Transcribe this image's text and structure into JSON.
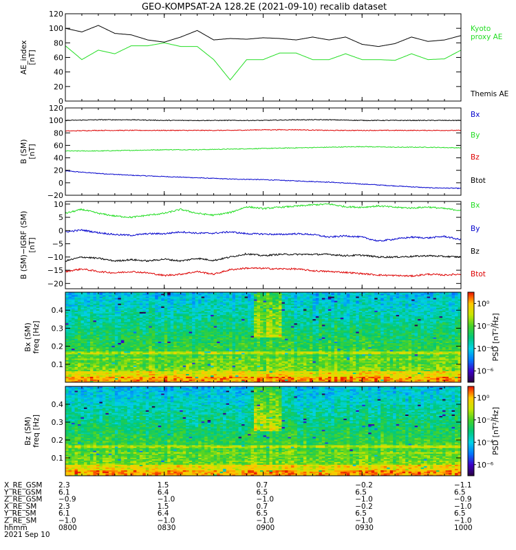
{
  "title": "GEO-KOMPSAT-2A 128.2E (2021-09-10) recalib dataset",
  "colors": {
    "black": "#000000",
    "green": "#22dd22",
    "red": "#dd0000",
    "blue": "#0000cc"
  },
  "time_ticks": [
    "0800",
    "0830",
    "0900",
    "0930",
    "1000"
  ],
  "chart_data": [
    {
      "type": "line",
      "panel": "ae_index",
      "ylabel_lines": [
        "AE_index",
        "[nT]"
      ],
      "ylim": [
        0,
        120
      ],
      "yticks": [
        0,
        20,
        40,
        60,
        80,
        100,
        120
      ],
      "x": [
        0,
        5,
        10,
        15,
        20,
        25,
        30,
        35,
        40,
        45,
        50,
        55,
        60,
        65,
        70,
        75,
        80,
        85,
        90,
        95,
        100,
        105,
        110,
        115,
        120
      ],
      "series": [
        {
          "name": "Kyoto\nproxy AE",
          "label_lines": [
            "Kyoto",
            "proxy AE"
          ],
          "color_key": "green",
          "values": [
            76,
            57,
            70,
            65,
            76,
            76,
            80,
            75,
            75,
            57,
            29,
            57,
            57,
            66,
            66,
            57,
            57,
            65,
            57,
            57,
            56,
            65,
            57,
            58,
            70
          ]
        },
        {
          "name": "Themis AE",
          "label_lines": [
            "Themis AE"
          ],
          "color_key": "black",
          "values": [
            100,
            95,
            104,
            93,
            91,
            84,
            81,
            88,
            97,
            84,
            86,
            85,
            87,
            86,
            84,
            88,
            84,
            88,
            78,
            75,
            79,
            88,
            82,
            84,
            90
          ]
        }
      ]
    },
    {
      "type": "line",
      "panel": "b_sm",
      "ylabel_lines": [
        "B (SM)",
        "[nT]"
      ],
      "ylim": [
        -20,
        120
      ],
      "yticks": [
        -20,
        0,
        20,
        40,
        60,
        80,
        100,
        120
      ],
      "x": [
        0,
        10,
        20,
        30,
        40,
        50,
        60,
        70,
        80,
        90,
        100,
        110,
        120
      ],
      "series": [
        {
          "name": "Bx",
          "label_lines": [
            "Bx"
          ],
          "color_key": "blue",
          "values": [
            19,
            15,
            12,
            10,
            8,
            6,
            5,
            3,
            1,
            -2,
            -5,
            -8,
            -9
          ]
        },
        {
          "name": "By",
          "label_lines": [
            "By"
          ],
          "color_key": "green",
          "values": [
            51,
            51,
            52,
            53,
            53,
            54,
            55,
            56,
            57,
            58,
            57,
            57,
            56
          ]
        },
        {
          "name": "Bz",
          "label_lines": [
            "Bz"
          ],
          "color_key": "red",
          "values": [
            83,
            84,
            84,
            84,
            84,
            84,
            85,
            85,
            84,
            84,
            84,
            84,
            84
          ]
        },
        {
          "name": "Btot",
          "label_lines": [
            "Btot"
          ],
          "color_key": "black",
          "values": [
            100,
            101,
            101,
            100,
            100,
            100,
            100,
            101,
            101,
            100,
            100,
            100,
            100
          ]
        }
      ]
    },
    {
      "type": "line",
      "panel": "b_sm_minus_igrf",
      "ylabel_lines": [
        "B (SM)−IGRF (SM)",
        "[nT]"
      ],
      "ylim": [
        -22,
        11
      ],
      "yticks": [
        -20,
        -15,
        -10,
        -5,
        0,
        5,
        10
      ],
      "x": [
        0,
        5,
        10,
        15,
        20,
        25,
        30,
        35,
        40,
        45,
        50,
        55,
        60,
        65,
        70,
        75,
        80,
        85,
        90,
        95,
        100,
        105,
        110,
        115,
        120
      ],
      "series": [
        {
          "name": "Bx",
          "label_lines": [
            "Bx"
          ],
          "color_key": "green",
          "values": [
            6.5,
            8.0,
            6.5,
            5.5,
            5.0,
            5.8,
            6.5,
            8.0,
            6.5,
            5.8,
            6.8,
            9.0,
            8.3,
            8.8,
            9.2,
            9.7,
            10.0,
            9.0,
            8.8,
            9.3,
            8.8,
            8.5,
            8.9,
            8.3,
            7.6
          ]
        },
        {
          "name": "By",
          "label_lines": [
            "By"
          ],
          "color_key": "blue",
          "values": [
            -0.5,
            0.2,
            -0.8,
            -1.5,
            -1.8,
            -1.2,
            -1.2,
            -0.5,
            -1.0,
            -1.0,
            -0.5,
            -1.2,
            -1.3,
            -1.5,
            -1.2,
            -1.5,
            -2.5,
            -2.0,
            -2.5,
            -4.0,
            -3.2,
            -2.5,
            -2.8,
            -2.2,
            -3.5
          ]
        },
        {
          "name": "Bz",
          "label_lines": [
            "Bz"
          ],
          "color_key": "black",
          "values": [
            -11.5,
            -10.0,
            -10.5,
            -11.5,
            -11.0,
            -11.5,
            -10.8,
            -11.5,
            -10.5,
            -11.3,
            -10.0,
            -8.8,
            -9.5,
            -9.0,
            -9.0,
            -9.0,
            -9.0,
            -9.5,
            -9.3,
            -10.0,
            -10.0,
            -9.8,
            -9.5,
            -9.8,
            -10.0
          ]
        },
        {
          "name": "Btot",
          "label_lines": [
            "Btot"
          ],
          "color_key": "red",
          "values": [
            -15.5,
            -14.5,
            -15.5,
            -16.0,
            -15.5,
            -16.0,
            -17.0,
            -16.5,
            -15.5,
            -16.5,
            -14.8,
            -14.2,
            -14.3,
            -14.5,
            -14.5,
            -15.2,
            -15.5,
            -15.8,
            -16.3,
            -16.8,
            -17.0,
            -17.2,
            -16.5,
            -16.8,
            -16.5
          ]
        }
      ]
    },
    {
      "type": "heatmap",
      "panel": "bx_spectrogram",
      "ylabel_lines": [
        "Bx (SM)",
        "freq [Hz]"
      ],
      "ylim": [
        0,
        0.5
      ],
      "yticks": [
        0.1,
        0.2,
        0.3,
        0.4
      ],
      "colorbar_label": "PSD [nT²/Hz]",
      "colorbar_ticks": [
        "10⁰",
        "10⁻²",
        "10⁻⁴",
        "10⁻⁶"
      ],
      "colorbar_range_exp": [
        -7,
        1
      ]
    },
    {
      "type": "heatmap",
      "panel": "bz_spectrogram",
      "ylabel_lines": [
        "Bz (SM)",
        "freq [Hz]"
      ],
      "ylim": [
        0,
        0.5
      ],
      "yticks": [
        0.1,
        0.2,
        0.3,
        0.4
      ],
      "colorbar_label": "PSD [nT²/Hz]",
      "colorbar_ticks": [
        "10⁰",
        "10⁻²",
        "10⁻⁴",
        "10⁻⁶"
      ],
      "colorbar_range_exp": [
        -7,
        1
      ]
    }
  ],
  "ephemeris": {
    "rows": [
      {
        "label": "X_RE_GSM",
        "values": [
          "2.3",
          "1.5",
          "0.7",
          "−0.2",
          "−1.1"
        ]
      },
      {
        "label": "Y_RE_GSM",
        "values": [
          "6.1",
          "6.4",
          "6.5",
          "6.5",
          "6.5"
        ]
      },
      {
        "label": "Z_RE_GSM",
        "values": [
          "−0.9",
          "−1.0",
          "−1.0",
          "−1.0",
          "−0.9"
        ]
      },
      {
        "label": "X_RE_SM",
        "values": [
          "2.3",
          "1.5",
          "0.7",
          "−0.2",
          "−1.0"
        ]
      },
      {
        "label": "Y_RE_SM",
        "values": [
          "6.1",
          "6.4",
          "6.5",
          "6.5",
          "6.5"
        ]
      },
      {
        "label": "Z_RE_SM",
        "values": [
          "−1.0",
          "−1.0",
          "−1.0",
          "−1.0",
          "−1.0"
        ]
      },
      {
        "label": "hhmm",
        "values": [
          "0800",
          "0830",
          "0900",
          "0930",
          "1000"
        ]
      }
    ],
    "date": "2021 Sep 10"
  }
}
